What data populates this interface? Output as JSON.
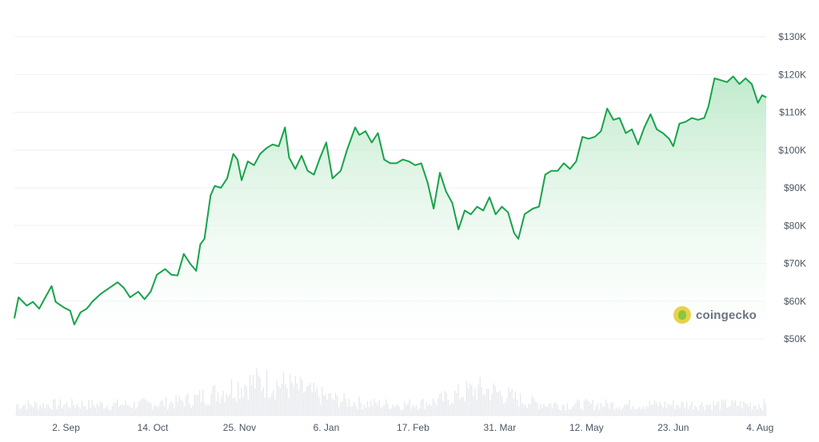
{
  "watermark": {
    "brand": "coingecko",
    "icon": "gecko-logo-icon"
  },
  "colors": {
    "line": "#16a34a",
    "fill_top": "#b9e8c6",
    "fill_bottom": "#ffffff",
    "volume": "#e5e7eb",
    "grid": "#eef0f2",
    "text": "#4b5563"
  },
  "chart_data": {
    "type": "area",
    "title": "",
    "xlabel": "",
    "ylabel": "",
    "y_unit": "USD",
    "ylim": [
      50000,
      130000
    ],
    "y_ticks": [
      {
        "value": 50000,
        "label": "$50K"
      },
      {
        "value": 60000,
        "label": "$60K"
      },
      {
        "value": 70000,
        "label": "$70K"
      },
      {
        "value": 80000,
        "label": "$80K"
      },
      {
        "value": 90000,
        "label": "$90K"
      },
      {
        "value": 100000,
        "label": "$100K"
      },
      {
        "value": 110000,
        "label": "$110K"
      },
      {
        "value": 120000,
        "label": "$120K"
      },
      {
        "value": 130000,
        "label": "$130K"
      }
    ],
    "x_ticks": [
      {
        "date": "2024-09-02",
        "label": "2. Sep"
      },
      {
        "date": "2024-10-14",
        "label": "14. Oct"
      },
      {
        "date": "2024-11-25",
        "label": "25. Nov"
      },
      {
        "date": "2025-01-06",
        "label": "6. Jan"
      },
      {
        "date": "2025-02-17",
        "label": "17. Feb"
      },
      {
        "date": "2025-03-31",
        "label": "31. Mar"
      },
      {
        "date": "2025-05-12",
        "label": "12. May"
      },
      {
        "date": "2025-06-23",
        "label": "23. Jun"
      },
      {
        "date": "2025-08-04",
        "label": "4. Aug"
      }
    ],
    "grid": true,
    "legend": "none",
    "series": [
      {
        "values": [
          [
            "2024-08-08",
            55500
          ],
          [
            "2024-08-10",
            61000
          ],
          [
            "2024-08-14",
            58800
          ],
          [
            "2024-08-17",
            59800
          ],
          [
            "2024-08-20",
            58000
          ],
          [
            "2024-08-23",
            61000
          ],
          [
            "2024-08-26",
            64000
          ],
          [
            "2024-08-28",
            59800
          ],
          [
            "2024-09-01",
            58300
          ],
          [
            "2024-09-04",
            57500
          ],
          [
            "2024-09-06",
            53800
          ],
          [
            "2024-09-09",
            57000
          ],
          [
            "2024-09-12",
            58000
          ],
          [
            "2024-09-15",
            60000
          ],
          [
            "2024-09-19",
            62000
          ],
          [
            "2024-09-23",
            63500
          ],
          [
            "2024-09-27",
            65000
          ],
          [
            "2024-09-30",
            63500
          ],
          [
            "2024-10-03",
            61000
          ],
          [
            "2024-10-07",
            62500
          ],
          [
            "2024-10-10",
            60500
          ],
          [
            "2024-10-13",
            62500
          ],
          [
            "2024-10-16",
            67000
          ],
          [
            "2024-10-20",
            68500
          ],
          [
            "2024-10-23",
            67000
          ],
          [
            "2024-10-26",
            66800
          ],
          [
            "2024-10-29",
            72500
          ],
          [
            "2024-11-01",
            70000
          ],
          [
            "2024-11-04",
            68000
          ],
          [
            "2024-11-06",
            75000
          ],
          [
            "2024-11-08",
            76500
          ],
          [
            "2024-11-11",
            88000
          ],
          [
            "2024-11-13",
            90500
          ],
          [
            "2024-11-16",
            90000
          ],
          [
            "2024-11-19",
            92500
          ],
          [
            "2024-11-22",
            99000
          ],
          [
            "2024-11-24",
            97500
          ],
          [
            "2024-11-26",
            92000
          ],
          [
            "2024-11-29",
            97000
          ],
          [
            "2024-12-02",
            96000
          ],
          [
            "2024-12-05",
            99000
          ],
          [
            "2024-12-08",
            100500
          ],
          [
            "2024-12-11",
            101500
          ],
          [
            "2024-12-14",
            101000
          ],
          [
            "2024-12-17",
            106000
          ],
          [
            "2024-12-19",
            98000
          ],
          [
            "2024-12-22",
            95000
          ],
          [
            "2024-12-25",
            98500
          ],
          [
            "2024-12-28",
            94500
          ],
          [
            "2024-12-31",
            93500
          ],
          [
            "2025-01-03",
            98000
          ],
          [
            "2025-01-06",
            102000
          ],
          [
            "2025-01-09",
            92500
          ],
          [
            "2025-01-13",
            94500
          ],
          [
            "2025-01-16",
            100000
          ],
          [
            "2025-01-20",
            106000
          ],
          [
            "2025-01-22",
            104000
          ],
          [
            "2025-01-25",
            105000
          ],
          [
            "2025-01-28",
            102000
          ],
          [
            "2025-01-31",
            104500
          ],
          [
            "2025-02-03",
            97500
          ],
          [
            "2025-02-06",
            96500
          ],
          [
            "2025-02-09",
            96500
          ],
          [
            "2025-02-12",
            97500
          ],
          [
            "2025-02-15",
            97000
          ],
          [
            "2025-02-18",
            96000
          ],
          [
            "2025-02-21",
            96500
          ],
          [
            "2025-02-24",
            91500
          ],
          [
            "2025-02-27",
            84500
          ],
          [
            "2025-03-02",
            94000
          ],
          [
            "2025-03-05",
            89000
          ],
          [
            "2025-03-08",
            86000
          ],
          [
            "2025-03-11",
            79000
          ],
          [
            "2025-03-14",
            84000
          ],
          [
            "2025-03-17",
            83000
          ],
          [
            "2025-03-20",
            85000
          ],
          [
            "2025-03-23",
            84000
          ],
          [
            "2025-03-26",
            87500
          ],
          [
            "2025-03-29",
            83000
          ],
          [
            "2025-04-01",
            85000
          ],
          [
            "2025-04-04",
            83500
          ],
          [
            "2025-04-07",
            78000
          ],
          [
            "2025-04-09",
            76500
          ],
          [
            "2025-04-12",
            83000
          ],
          [
            "2025-04-16",
            84500
          ],
          [
            "2025-04-19",
            85000
          ],
          [
            "2025-04-22",
            93500
          ],
          [
            "2025-04-25",
            94500
          ],
          [
            "2025-04-28",
            94500
          ],
          [
            "2025-05-01",
            96500
          ],
          [
            "2025-05-04",
            95000
          ],
          [
            "2025-05-07",
            97000
          ],
          [
            "2025-05-10",
            103500
          ],
          [
            "2025-05-13",
            103000
          ],
          [
            "2025-05-16",
            103500
          ],
          [
            "2025-05-19",
            105000
          ],
          [
            "2025-05-22",
            111000
          ],
          [
            "2025-05-25",
            108000
          ],
          [
            "2025-05-28",
            108500
          ],
          [
            "2025-05-31",
            104500
          ],
          [
            "2025-06-03",
            105500
          ],
          [
            "2025-06-06",
            101500
          ],
          [
            "2025-06-09",
            106000
          ],
          [
            "2025-06-12",
            109500
          ],
          [
            "2025-06-15",
            105500
          ],
          [
            "2025-06-18",
            104500
          ],
          [
            "2025-06-21",
            103000
          ],
          [
            "2025-06-23",
            101000
          ],
          [
            "2025-06-26",
            107000
          ],
          [
            "2025-06-29",
            107500
          ],
          [
            "2025-07-02",
            108500
          ],
          [
            "2025-07-05",
            108000
          ],
          [
            "2025-07-08",
            108500
          ],
          [
            "2025-07-10",
            111500
          ],
          [
            "2025-07-13",
            119000
          ],
          [
            "2025-07-16",
            118500
          ],
          [
            "2025-07-19",
            118000
          ],
          [
            "2025-07-22",
            119500
          ],
          [
            "2025-07-25",
            117500
          ],
          [
            "2025-07-28",
            119000
          ],
          [
            "2025-07-31",
            117500
          ],
          [
            "2025-08-03",
            112500
          ],
          [
            "2025-08-05",
            114500
          ],
          [
            "2025-08-07",
            114000
          ]
        ]
      }
    ]
  }
}
